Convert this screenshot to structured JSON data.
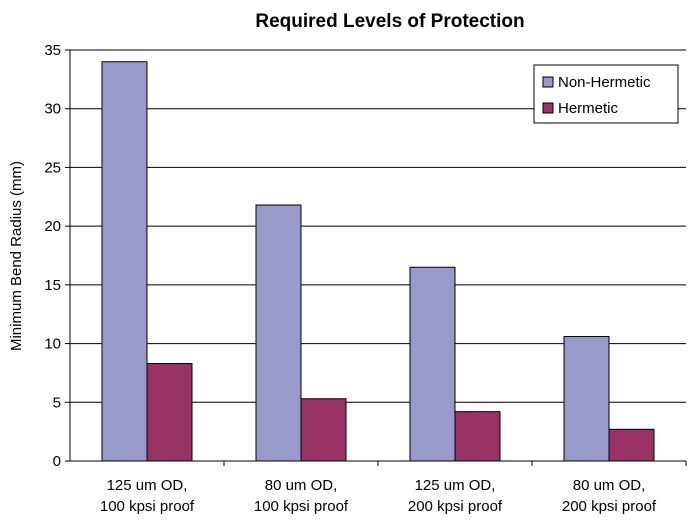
{
  "chart_data": {
    "type": "bar",
    "title": "Required Levels of Protection",
    "xlabel": "",
    "ylabel": "Minimum Bend Radius (mm)",
    "ylim": [
      0,
      35
    ],
    "yticks": [
      0,
      5,
      10,
      15,
      20,
      25,
      30,
      35
    ],
    "grid": true,
    "legend_position": "top-right",
    "categories": [
      [
        "125 um OD,",
        "100 kpsi proof"
      ],
      [
        "80 um OD,",
        "100 kpsi proof"
      ],
      [
        "125 um OD,",
        "200 kpsi proof"
      ],
      [
        "80 um OD,",
        "200 kpsi proof"
      ]
    ],
    "series": [
      {
        "name": "Non-Hermetic",
        "color": "#9999cc",
        "values": [
          34.0,
          21.8,
          16.5,
          10.6
        ]
      },
      {
        "name": "Hermetic",
        "color": "#993366",
        "values": [
          8.3,
          5.3,
          4.2,
          2.7
        ]
      }
    ]
  }
}
